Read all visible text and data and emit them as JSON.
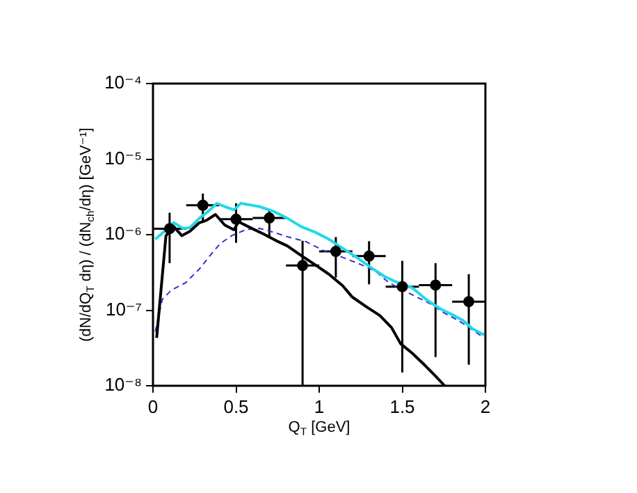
{
  "chart_data": {
    "type": "line",
    "xlabel": "Q$_{T}$ [GeV]",
    "ylabel": "(dN/dQ$_{T}$ dη) / (dN$_{ch}$/dη) [GeV⁻¹]",
    "log": "y",
    "grid": false,
    "legend": false,
    "xlim": [
      0,
      2
    ],
    "xticks": [
      0,
      0.5,
      1,
      1.5,
      2
    ],
    "ylim": [
      1e-08,
      0.0001
    ],
    "yticks": [
      {
        "value": 1e-08,
        "label": "10⁻⁸"
      },
      {
        "value": 1e-07,
        "label": "10⁻⁷"
      },
      {
        "value": 1e-06,
        "label": "10⁻⁶"
      },
      {
        "value": 1e-05,
        "label": "10⁻⁵"
      },
      {
        "value": 0.0001,
        "label": "10⁻⁴"
      }
    ],
    "series": [
      {
        "color": "#000000",
        "line_style": "solid",
        "marker": "none",
        "x": [
          0.022,
          0.078,
          0.125,
          0.173,
          0.223,
          0.279,
          0.32,
          0.376,
          0.432,
          0.487,
          0.515,
          0.585,
          0.669,
          0.752,
          0.808,
          0.891,
          0.975,
          1.058,
          1.142,
          1.198,
          1.281,
          1.365,
          1.435,
          1.49,
          1.56,
          1.643,
          1.699,
          1.755
        ],
        "values": [
          4.3e-08,
          9.7e-07,
          1.28e-06,
          9.7e-07,
          1.11e-06,
          1.44e-06,
          1.54e-06,
          1.85e-06,
          1.34e-06,
          1.16e-06,
          1.48e-06,
          1.24e-06,
          1.01e-06,
          8.1e-07,
          7.1e-07,
          5.3e-07,
          4e-07,
          3e-07,
          2.1e-07,
          1.5e-07,
          1.12e-07,
          8.5e-08,
          5.9e-08,
          3.6e-08,
          2.7e-08,
          1.8e-08,
          1.35e-08,
          1e-08
        ]
      },
      {
        "color": "#22d8e8",
        "line_style": "solid",
        "marker": "none",
        "x": [
          0.014,
          0.07,
          0.125,
          0.181,
          0.223,
          0.279,
          0.334,
          0.384,
          0.432,
          0.487,
          0.529,
          0.641,
          0.724,
          0.808,
          0.891,
          0.975,
          1.058,
          1.142,
          1.226,
          1.309,
          1.393,
          1.476,
          1.56,
          1.643,
          1.727,
          1.811,
          1.866,
          1.922,
          1.992
        ],
        "values": [
          8.7e-07,
          1.11e-06,
          1.44e-06,
          1.21e-06,
          1.24e-06,
          1.65e-06,
          2.04e-06,
          2.6e-06,
          2.35e-06,
          2.13e-06,
          2.6e-06,
          2.35e-06,
          2.04e-06,
          1.65e-06,
          1.28e-06,
          1.08e-06,
          8.7e-07,
          6.6e-07,
          5e-07,
          3.7e-07,
          2.8e-07,
          2.3e-07,
          1.98e-07,
          1.39e-07,
          1.05e-07,
          8.5e-08,
          7.3e-08,
          5.7e-08,
          4.7e-08
        ]
      },
      {
        "color": "#3333cc",
        "line_style": "dashed",
        "marker": "none",
        "x": [
          0.014,
          0.056,
          0.111,
          0.195,
          0.279,
          0.334,
          0.404,
          0.474,
          0.557,
          0.641,
          0.724,
          0.808,
          0.919,
          1.031,
          1.142,
          1.253,
          1.337,
          1.421,
          1.504,
          1.588,
          1.671,
          1.755,
          1.838,
          1.922,
          1.992
        ],
        "values": [
          5.2e-08,
          1.39e-07,
          1.85e-07,
          2.3e-07,
          3.5e-07,
          5e-07,
          7.6e-07,
          9.7e-07,
          1.16e-06,
          1.21e-06,
          1.08e-06,
          9.4e-07,
          8.1e-07,
          6.1e-07,
          5e-07,
          4e-07,
          3.3e-07,
          2.3e-07,
          1.85e-07,
          1.49e-07,
          1.21e-07,
          9.1e-08,
          7.3e-08,
          5.5e-08,
          4.3e-08
        ]
      },
      {
        "type": "scatter",
        "color": "#000000",
        "marker": "circle",
        "x": [
          0.1,
          0.3,
          0.5,
          0.7,
          0.9,
          1.1,
          1.3,
          1.5,
          1.7,
          1.9
        ],
        "values": [
          1.2e-06,
          2.45e-06,
          1.6e-06,
          1.66e-06,
          3.9e-07,
          6e-07,
          5.2e-07,
          2.05e-07,
          2.15e-07,
          1.3e-07
        ],
        "errors": [
          [
            4.2e-07,
            1.95e-06
          ],
          [
            1.5e-06,
            3.5e-06
          ],
          [
            7.8e-07,
            2.6e-06
          ],
          [
            9.6e-07,
            2.2e-06
          ],
          [
            1e-08,
            8.3e-07
          ],
          [
            2.7e-07,
            9.3e-07
          ],
          [
            2.2e-07,
            8.2e-07
          ],
          [
            1.5e-08,
            4.5e-07
          ],
          [
            2.4e-08,
            4.2e-07
          ],
          [
            1.9e-08,
            3e-07
          ]
        ],
        "xerrors": [
          0.1,
          0.1,
          0.1,
          0.1,
          0.1,
          0.1,
          0.1,
          0.1,
          0.1,
          0.1
        ]
      }
    ]
  }
}
